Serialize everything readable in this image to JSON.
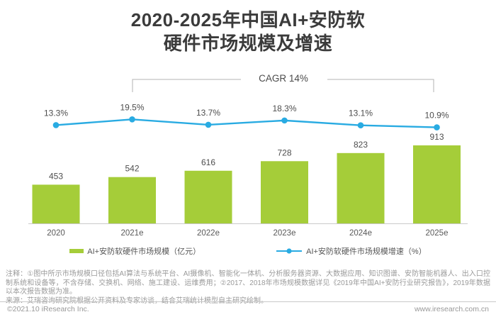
{
  "title": {
    "line1": "2020-2025年中国AI+安防软",
    "line2": "硬件市场规模及增速"
  },
  "chart_data": {
    "type": "bar",
    "subtype": "bar-line-combo",
    "categories": [
      "2020",
      "2021e",
      "2022e",
      "2023e",
      "2024e",
      "2025e"
    ],
    "series": [
      {
        "name": "AI+安防软硬件市场规模（亿元）",
        "type": "bar",
        "values": [
          453,
          542,
          616,
          728,
          823,
          913
        ],
        "color": "#a5cd39"
      },
      {
        "name": "AI+安防软硬件市场规模增速（%）",
        "type": "line",
        "values": [
          13.3,
          19.5,
          13.7,
          18.3,
          13.1,
          10.9
        ],
        "color": "#29abe2"
      }
    ],
    "annotation": "CAGR 14%",
    "xlabel": "",
    "ylabel": "",
    "grid": false,
    "legend_position": "bottom",
    "bar_axis_color": "#c9c9c9"
  },
  "notes": {
    "note": "注释：①图中所示市场规模口径包括AI算法与系统平台、AI摄像机、智能化一体机、分析服务器资源、大数据应用、知识图谱、安防智能机器人、出入口控制系统和设备等，不含存储、交换机、网络、施工建设、运维费用；②2017、2018年市场规模数据详见《2019年中国AI+安防行业研究报告》，2019年数据以本次报告数据为准。",
    "source": "来源：艾瑞咨询研究院根据公开资料及专家访谈，结合艾瑞统计模型自主研究绘制。"
  },
  "footer": {
    "left": "©2021.10 iResearch Inc.",
    "right": "www.iresearch.com.cn"
  }
}
